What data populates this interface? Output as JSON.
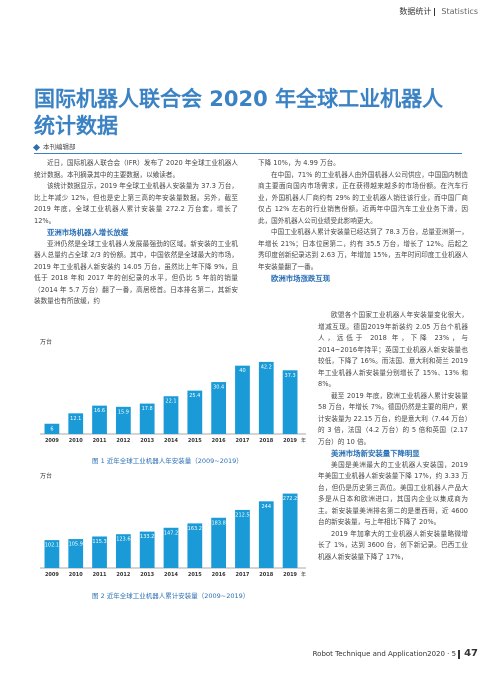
{
  "header": {
    "section_cn": "数据统计",
    "section_en": "Statistics"
  },
  "article": {
    "title": "国际机器人联合会 2020 年全球工业机器人统计数据",
    "author": "本刊编辑部"
  },
  "body": {
    "p1": "近日，国际机器人联合会（IFR）发布了 2020 年全球工业机器人统计数据。本刊摘录其中的主要数据，以飨读者。",
    "p2": "该统计数据显示，2019 年全球工业机器人安装量为 37.3 万台，比上年减少 12%，但也是史上第三高的年安装量数据。另外，截至 2019 年底，全球工业机器人累计安装量 272.2 万台套，增长了 12%。",
    "h1": "亚洲市场机器人增长放缓",
    "p3": "亚洲仍然是全球工业机器人发展最强劲的区域。新安装的工业机器人总量约占全球 2/3 的份额。其中，中国依然是全球最大的市场，2019 年工业机器人新安装约 14.05 万台，虽然比上年下降 9%，且低于 2018 年和 2017 年的创纪录的水平，但仍比 5 年前的销量（2014 年 5.7 万台）翻了一番，高居榜首。日本排名第二，其新安装数量也有所放缓，约",
    "p4": "下降 10%，为 4.99 万台。",
    "p5": "在中国，71% 的工业机器人由外国机器人公司供应，中国国内制造商主要面向国内市场需求，正在获得越来越多的市场份额。在汽车行业，外国机器人厂商约有 29% 的工业机器人销往该行业，而中国厂商仅占 12% 左右的行业销售份额。近两年中国汽车工业业务下滑，因此，国外机器人公司业绩受此影响更大。",
    "p6": "中国工业机器人累计安装量已经达到了 78.3 万台，总量亚洲第一，年增长 21%；日本位居第二，约有 35.5 万台，增长了 12%。后起之秀印度创新纪录达到 2.63 万，年增加 15%，五年时间印度工业机器人年安装量翻了一番。",
    "h2": "欧洲市场涨跌互现",
    "p7": "欧盟各个国家工业机器人年安装量变化很大，增减互现。德国2019年新装约 2.05 万台个机器人，远低于 2018 年，下降 23%，与 2014~2016年持平；英国工业机器人新安装量也较低，下降了 16%。而法国、意大利和荷兰 2019年工业机器人新安装量分别增长了 15%、13% 和 8%。",
    "p8": "截至 2019 年底，欧洲工业机器人累计安装量 58 万台，年增长 7%。德国仍然是主要的用户，累计安装量为 22.15 万台，约是意大利（7.44 万台）的 3 倍，法国（4.2 万台）的 5 倍和英国（2.17 万台）的 10 倍。",
    "h3": "美洲市场新安装量下降明显",
    "p9": "美国是美洲最大的工业机器人安装国，2019 年美国工业机器人新安装量下降 17%，约 3.33 万台，但仍是历史第三高位。美国工业机器人产品大多是从日本和欧洲进口，其国内企业以集成商为主。新安装量美洲排名第二的是墨西哥，近 4600 台的新安装量，与上年相比下降了 20%。",
    "p10": "2019 年加拿大的工业机器人新安装量略微增长了 1%，达到 3600 台，创下新记录。巴西工业机器人新安装量下降了 17%，"
  },
  "figure1": {
    "caption": "图 1  近年全球工业机器人年安装量（2009~2019）",
    "chart_data": {
      "type": "bar",
      "unit_label": "万台",
      "xlabel_suffix": "年",
      "categories": [
        "2009",
        "2010",
        "2011",
        "2012",
        "2013",
        "2014",
        "2015",
        "2016",
        "2017",
        "2018",
        "2019"
      ],
      "values": [
        6,
        12.1,
        16.6,
        15.9,
        17.8,
        22.1,
        25.4,
        30.4,
        40,
        42.2,
        37.3
      ],
      "labels": [
        "6",
        "12.1",
        "16.6",
        "15.9",
        "17.8",
        "22.1",
        "25.4",
        "30.4",
        "40",
        "42.2",
        "37.3"
      ],
      "ylim": [
        0,
        48
      ],
      "color": "#1a9bd7"
    }
  },
  "figure2": {
    "caption": "图 2  近年全球工业机器人累计安装量（2009~2019）",
    "chart_data": {
      "type": "bar",
      "unit_label": "万台",
      "xlabel_suffix": "年",
      "categories": [
        "2009",
        "2010",
        "2011",
        "2012",
        "2013",
        "2014",
        "2015",
        "2016",
        "2017",
        "2018",
        "2019"
      ],
      "values": [
        102.1,
        105.9,
        115.3,
        123.6,
        133.2,
        147.2,
        163.2,
        183.8,
        212.5,
        244,
        272.2
      ],
      "labels": [
        "102.1",
        "105.9",
        "115.3",
        "123.6",
        "133.2",
        "147.2",
        "163.2",
        "183.8",
        "212.5",
        "244",
        "272.2"
      ],
      "ylim": [
        0,
        300
      ],
      "color": "#1a9bd7"
    }
  },
  "footer": {
    "text": "Robot Technique and Application2020 · 5",
    "page": "47"
  }
}
